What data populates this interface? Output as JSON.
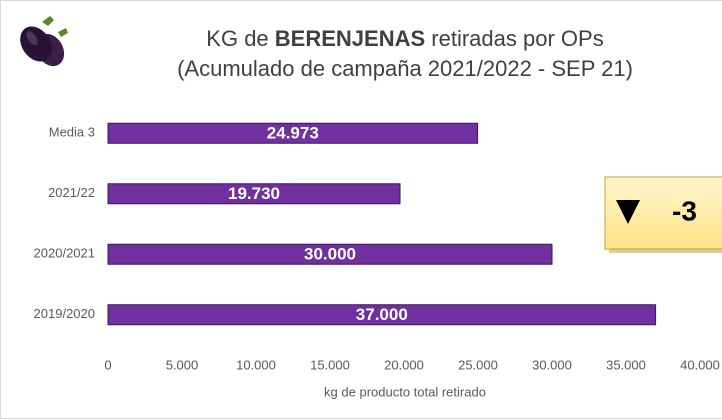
{
  "chart_data": {
    "type": "bar",
    "orientation": "horizontal",
    "title": [
      "KG de",
      "BERENJENAS",
      "retiradas por OPs"
    ],
    "subtitle": "(Acumulado de campaña 2021/2022 - SEP 21)",
    "categories": [
      "Media 3",
      "2021/22",
      "2020/2021",
      "2019/2020"
    ],
    "values": [
      24973,
      19730,
      30000,
      37000
    ],
    "value_labels": [
      "24.973",
      "19.730",
      "30.000",
      "37.000"
    ],
    "color": "#7030a0",
    "xlim": [
      0,
      40000
    ],
    "xticks": [
      0,
      {
        "value": 5000,
        "label": "5.000"
      },
      {
        "value": 10000,
        "label": "10.000"
      },
      {
        "value": 15000,
        "label": "15.000"
      },
      {
        "value": 20000,
        "label": "20.000"
      },
      {
        "value": 25000,
        "label": "25.000"
      },
      {
        "value": 30000,
        "label": "30.000"
      },
      {
        "value": 35000,
        "label": "35.000"
      },
      {
        "value": 40000,
        "label": "40.000"
      }
    ],
    "xlabel": "kg de producto total retirado",
    "annotation": "-3"
  }
}
